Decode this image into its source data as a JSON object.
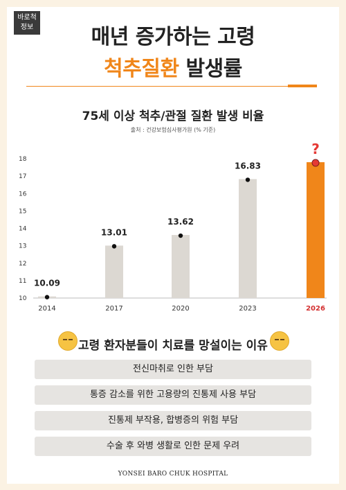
{
  "badge": {
    "line1": "바로척",
    "line2": "정보"
  },
  "headline": {
    "line1": "매년 증가하는 고령",
    "line2_highlight": "척추질환",
    "line2_rest": "발생률"
  },
  "colors": {
    "accent": "#f0861a",
    "bar": "#dcd8d2",
    "dot": "#111111",
    "highlight_dot": "#e53935",
    "question": "#e53935"
  },
  "chart_data": {
    "type": "bar",
    "title": "75세 이상 척추/관절 질환 발생 비율",
    "source": "출처 : 건강보험심사평가원 (% 기준)",
    "categories": [
      "2014",
      "2017",
      "2020",
      "2023",
      "2026"
    ],
    "values": [
      10.09,
      13.01,
      13.62,
      16.83,
      17.8
    ],
    "value_labels": [
      "10.09",
      "13.01",
      "13.62",
      "16.83",
      "?"
    ],
    "highlight_index": 4,
    "ylim": [
      10,
      18
    ],
    "yticks": [
      "10",
      "11",
      "12",
      "13",
      "14",
      "15",
      "16",
      "17",
      "18"
    ],
    "xlabel": "",
    "ylabel": "",
    "grid": false
  },
  "reasons": {
    "title": "고령 환자분들이 치료를 망설이는 이유",
    "icon": "worried-face-icon",
    "items": [
      "전신마취로 인한 부담",
      "통증 감소를 위한 고용량의 진통제 사용 부담",
      "진통제 부작용, 합병증의 위험 부담",
      "수술 후 와병 생활로 인한 문제 우려"
    ]
  },
  "footer": "YONSEI BARO CHUK HOSPITAL"
}
